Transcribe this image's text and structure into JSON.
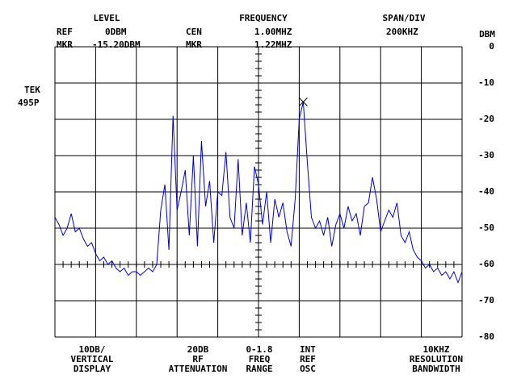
{
  "header": {
    "level": "LEVEL",
    "frequency": "FREQUENCY",
    "span_div": "SPAN/DIV",
    "ref": "REF",
    "ref_level": "0DBM",
    "cen": "CEN",
    "cen_freq": "1.00MHZ",
    "span": "200KHZ",
    "mkr": "MKR",
    "mkr_level": "-15.20DBM",
    "mkr2": "MKR",
    "mkr_freq": "1.22MHZ",
    "model_1": "TEK",
    "model_2": "495P",
    "unit": "DBM"
  },
  "footer": {
    "vertical": [
      "10DB/",
      "VERTICAL",
      "DISPLAY"
    ],
    "attenuation": [
      "20DB",
      "RF",
      "ATTENUATION"
    ],
    "range": [
      "0-1.8",
      "FREQ",
      "RANGE"
    ],
    "osc": [
      "INT",
      "REF",
      "OSC"
    ],
    "bandwidth": [
      "10KHZ",
      "RESOLUTION",
      "BANDWIDTH"
    ]
  },
  "chart_data": {
    "type": "line",
    "color": "#0000cc",
    "grid": true,
    "xlim": [
      0,
      2
    ],
    "xticks": [
      0,
      0.2,
      0.4,
      0.6,
      0.8,
      1.0,
      1.2,
      1.4,
      1.6,
      1.8,
      2.0
    ],
    "ylim": [
      -80,
      0
    ],
    "yticks": [
      0,
      -10,
      -20,
      -30,
      -40,
      -50,
      -60,
      -70,
      -80
    ],
    "x": [
      0,
      0.02,
      0.04,
      0.06,
      0.08,
      0.1,
      0.12,
      0.14,
      0.16,
      0.18,
      0.2,
      0.22,
      0.24,
      0.26,
      0.28,
      0.3,
      0.32,
      0.34,
      0.36,
      0.38,
      0.4,
      0.42,
      0.44,
      0.46,
      0.48,
      0.5,
      0.52,
      0.54,
      0.56,
      0.58,
      0.6,
      0.62,
      0.64,
      0.66,
      0.68,
      0.7,
      0.72,
      0.74,
      0.76,
      0.78,
      0.8,
      0.82,
      0.84,
      0.86,
      0.88,
      0.9,
      0.92,
      0.94,
      0.96,
      0.98,
      1.0,
      1.02,
      1.04,
      1.06,
      1.08,
      1.1,
      1.12,
      1.14,
      1.16,
      1.18,
      1.2,
      1.22,
      1.24,
      1.26,
      1.28,
      1.3,
      1.32,
      1.34,
      1.36,
      1.38,
      1.4,
      1.42,
      1.44,
      1.46,
      1.48,
      1.5,
      1.52,
      1.54,
      1.56,
      1.58,
      1.6,
      1.62,
      1.64,
      1.66,
      1.68,
      1.7,
      1.72,
      1.74,
      1.76,
      1.78,
      1.8,
      1.82,
      1.84,
      1.86,
      1.88,
      1.9,
      1.92,
      1.94,
      1.96,
      1.98,
      2.0
    ],
    "values": [
      -47,
      -49,
      -52,
      -50,
      -46,
      -51,
      -50,
      -53,
      -55,
      -54,
      -57,
      -59,
      -58,
      -60,
      -59,
      -61,
      -62,
      -61,
      -63,
      -62,
      -62,
      -63,
      -62,
      -61,
      -62,
      -60,
      -45,
      -38,
      -56,
      -19,
      -45,
      -40,
      -34,
      -52,
      -30,
      -55,
      -26,
      -44,
      -37,
      -54,
      -40,
      -41,
      -29,
      -47,
      -50,
      -31,
      -52,
      -43,
      -54,
      -33,
      -38,
      -49,
      -40,
      -54,
      -42,
      -47,
      -43,
      -51,
      -55,
      -42,
      -20,
      -15.2,
      -32,
      -47,
      -50,
      -48,
      -52,
      -47,
      -55,
      -49,
      -46,
      -50,
      -44,
      -48,
      -46,
      -52,
      -44,
      -43,
      -36,
      -42,
      -51,
      -48,
      -45,
      -47,
      -43,
      -52,
      -54,
      -51,
      -56,
      -58,
      -59,
      -61,
      -60,
      -62,
      -61,
      -63,
      -62,
      -64,
      -62,
      -65,
      -62
    ],
    "marker_index": 61
  }
}
